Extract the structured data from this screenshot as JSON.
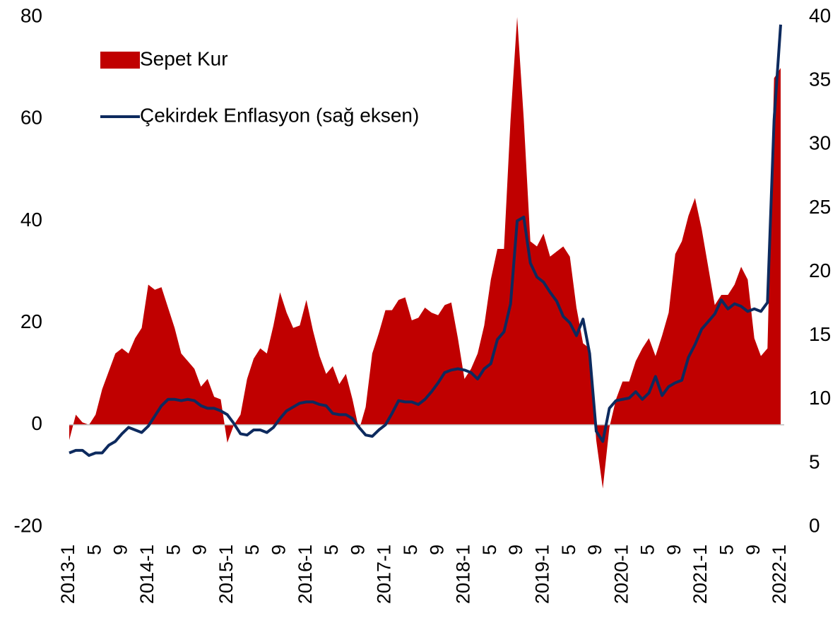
{
  "chart_data": {
    "type": "area_line",
    "categories": [
      "2013-1",
      null,
      null,
      null,
      "5",
      null,
      null,
      null,
      "9",
      null,
      null,
      null,
      "2014-1",
      null,
      null,
      null,
      "5",
      null,
      null,
      null,
      "9",
      null,
      null,
      null,
      "2015-1",
      null,
      null,
      null,
      "5",
      null,
      null,
      null,
      "9",
      null,
      null,
      null,
      "2016-1",
      null,
      null,
      null,
      "5",
      null,
      null,
      null,
      "9",
      null,
      null,
      null,
      "2017-1",
      null,
      null,
      null,
      "5",
      null,
      null,
      null,
      "9",
      null,
      null,
      null,
      "2018-1",
      null,
      null,
      null,
      "5",
      null,
      null,
      null,
      "9",
      null,
      null,
      null,
      "2019-1",
      null,
      null,
      null,
      "5",
      null,
      null,
      null,
      "9",
      null,
      null,
      null,
      "2020-1",
      null,
      null,
      null,
      "5",
      null,
      null,
      null,
      "9",
      null,
      null,
      null,
      "2021-1",
      null,
      null,
      null,
      "5",
      null,
      null,
      null,
      "9",
      null,
      null,
      null,
      "2022-1"
    ],
    "series": [
      {
        "name": "Sepet Kur",
        "color": "#c00000",
        "kind": "area",
        "values": [
          -3,
          2,
          0.5,
          0,
          2,
          7,
          10.5,
          14,
          15,
          14,
          17,
          19,
          27.5,
          26.5,
          27,
          23,
          19,
          14,
          12.5,
          11,
          7.5,
          9,
          5.5,
          5,
          -3.5,
          0,
          2,
          9,
          13,
          15,
          14,
          19.5,
          26,
          22,
          19,
          19.5,
          24.5,
          18.5,
          13.5,
          10,
          11.5,
          8,
          10,
          5,
          -1,
          3.5,
          14,
          18,
          22.5,
          22.5,
          24.5,
          25,
          20.5,
          21,
          23,
          22,
          21.5,
          23.5,
          24,
          17,
          9,
          11,
          14,
          19.5,
          28.5,
          34.5,
          34.5,
          60,
          80,
          60,
          36,
          35,
          37.5,
          33,
          34,
          35,
          33,
          23,
          16,
          15,
          -3,
          -12.5,
          -0.5,
          5,
          8.5,
          8.5,
          12.5,
          15,
          17,
          13.5,
          17.5,
          22,
          33.5,
          36,
          41,
          44.5,
          38.5,
          31,
          23.5,
          25.5,
          25.5,
          27.5,
          31,
          28.5,
          17,
          13.5,
          15,
          68,
          70
        ]
      },
      {
        "name": "Çekirdek Enflasyon (sağ eksen)",
        "color": "#0d2a5e",
        "kind": "line",
        "axis": "y2",
        "values": [
          5.8,
          6.0,
          6.0,
          5.6,
          5.8,
          5.8,
          6.4,
          6.7,
          7.3,
          7.8,
          7.6,
          7.4,
          7.9,
          8.7,
          9.5,
          10.0,
          10.0,
          9.9,
          10.0,
          9.9,
          9.5,
          9.3,
          9.3,
          9.1,
          8.8,
          8.1,
          7.3,
          7.2,
          7.6,
          7.6,
          7.4,
          7.8,
          8.5,
          9.1,
          9.4,
          9.7,
          9.8,
          9.8,
          9.6,
          9.5,
          8.9,
          8.8,
          8.8,
          8.5,
          7.8,
          7.2,
          7.1,
          7.6,
          8.0,
          8.9,
          9.9,
          9.8,
          9.8,
          9.6,
          10.0,
          10.6,
          11.3,
          12.1,
          12.3,
          12.4,
          12.3,
          12.1,
          11.6,
          12.4,
          12.8,
          14.7,
          15.3,
          17.5,
          24.0,
          24.3,
          20.7,
          19.6,
          19.2,
          18.4,
          17.7,
          16.5,
          16.0,
          15.0,
          16.3,
          13.6,
          7.5,
          6.7,
          9.3,
          9.9,
          10.0,
          10.1,
          10.6,
          10.0,
          10.5,
          11.8,
          10.3,
          11.0,
          11.3,
          11.5,
          13.3,
          14.3,
          15.5,
          16.1,
          16.7,
          17.8,
          17.1,
          17.5,
          17.3,
          16.9,
          17.1,
          16.9,
          17.6,
          31.9,
          39.4
        ]
      }
    ],
    "ylim": [
      -20,
      80
    ],
    "yticks": [
      -20,
      0,
      20,
      40,
      60,
      80
    ],
    "y2lim": [
      0,
      40
    ],
    "y2ticks": [
      0,
      5,
      10,
      15,
      20,
      25,
      30,
      35,
      40
    ],
    "legend": "upper left"
  }
}
